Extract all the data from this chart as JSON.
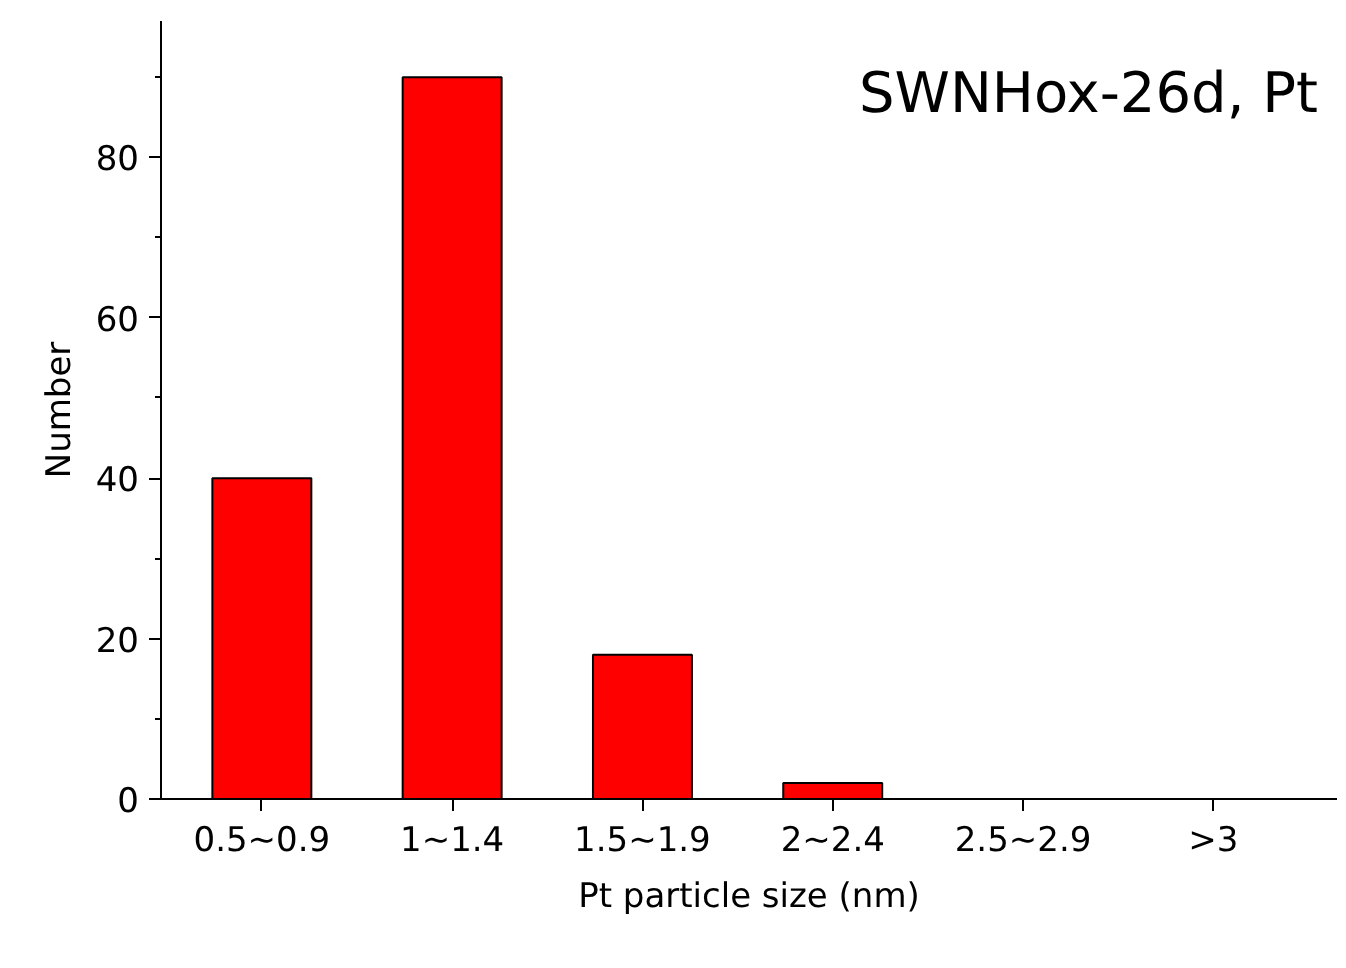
{
  "chart_data": {
    "type": "bar",
    "title": "SWNHox-26d, Pt",
    "xlabel": "Pt particle size (nm)",
    "ylabel": "Number",
    "categories": [
      "0.5~0.9",
      "1~1.4",
      "1.5~1.9",
      "2~2.4",
      "2.5~2.9",
      ">3"
    ],
    "values": [
      40,
      90,
      18,
      2,
      0,
      0
    ],
    "color": "#ff0000",
    "ylim": [
      0,
      97
    ],
    "yticks": [
      0,
      20,
      40,
      60,
      80
    ],
    "grid": false
  }
}
